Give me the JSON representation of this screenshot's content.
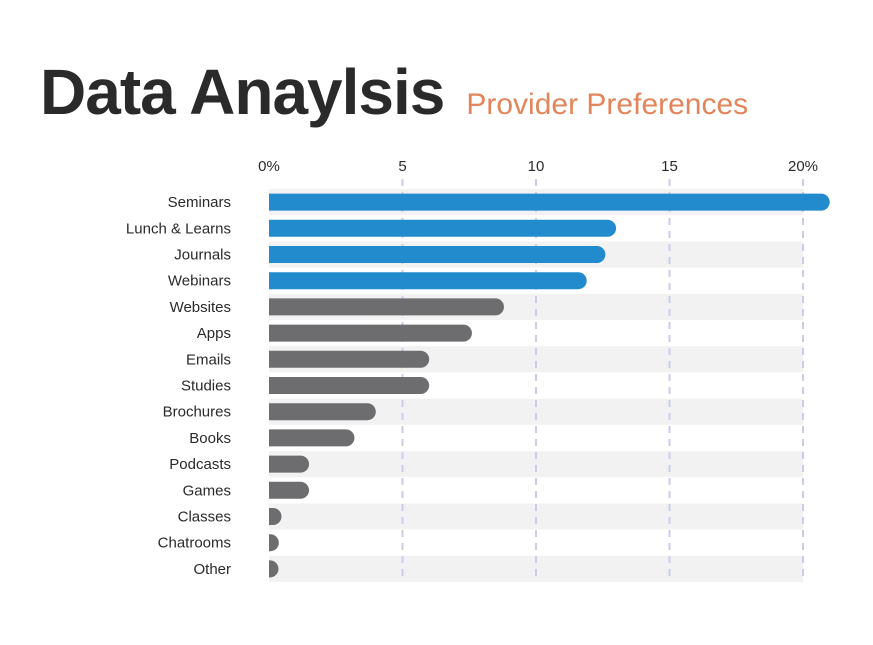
{
  "header": {
    "title": "Data Anaylsis",
    "subtitle": "Provider Preferences"
  },
  "colors": {
    "highlight": "#228bce",
    "default": "#6d6d70",
    "band": "#f2f2f2",
    "grid": "#c9cde8",
    "subtitle": "#e3855b"
  },
  "chart_data": {
    "type": "bar",
    "orientation": "horizontal",
    "title": "Provider Preferences",
    "xlabel": "",
    "ylabel": "",
    "xlim": [
      0,
      20
    ],
    "x_ticks": [
      0,
      5,
      10,
      15,
      20
    ],
    "x_tick_labels": [
      "0%",
      "5",
      "10",
      "15",
      "20%"
    ],
    "grid": true,
    "categories": [
      "Seminars",
      "Lunch & Learns",
      "Journals",
      "Webinars",
      "Websites",
      "Apps",
      "Emails",
      "Studies",
      "Brochures",
      "Books",
      "Podcasts",
      "Games",
      "Classes",
      "Chatrooms",
      "Other"
    ],
    "values": [
      21,
      13,
      12.6,
      11.9,
      8.8,
      7.6,
      6.0,
      6.0,
      4.0,
      3.2,
      1.5,
      1.5,
      0.3,
      0.1,
      0.05
    ],
    "highlighted": [
      "Seminars",
      "Lunch & Learns",
      "Journals",
      "Webinars"
    ]
  }
}
